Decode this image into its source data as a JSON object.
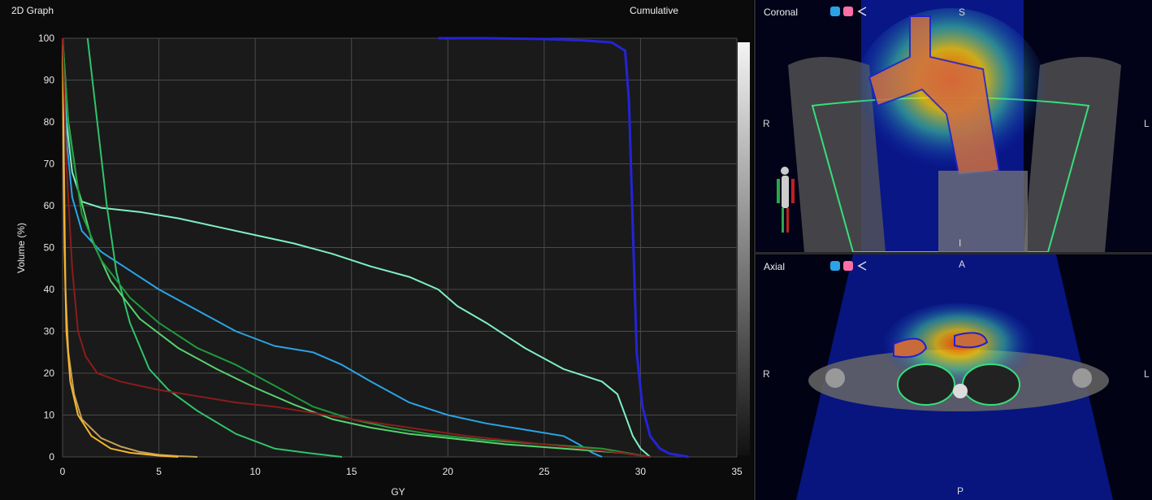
{
  "graph_panel": {
    "title": "2D Graph",
    "mode_label": "Cumulative"
  },
  "coronal_view": {
    "title": "Coronal",
    "orient_right": "R",
    "orient_left": "L",
    "orient_top": "S",
    "orient_bottom": "I"
  },
  "axial_view": {
    "title": "Axial",
    "orient_right": "R",
    "orient_left": "L",
    "orient_top": "A",
    "orient_bottom": "P"
  },
  "icons": {
    "cube_blue": "#2aa4e6",
    "cube_pink": "#ff6ea8",
    "share": "share-icon"
  },
  "chart_data": {
    "type": "line",
    "title": "",
    "xlabel": "GY",
    "ylabel": "Volume (%)",
    "xlim": [
      0,
      35
    ],
    "ylim": [
      0,
      100
    ],
    "x_ticks": [
      0,
      5,
      10,
      15,
      20,
      25,
      30,
      35
    ],
    "y_ticks": [
      0,
      10,
      20,
      30,
      40,
      50,
      60,
      70,
      80,
      90,
      100
    ],
    "grid": true,
    "series": [
      {
        "color": "#2424d6",
        "points": [
          [
            19.5,
            100
          ],
          [
            22,
            100
          ],
          [
            25,
            99.8
          ],
          [
            27,
            99.5
          ],
          [
            28.5,
            99
          ],
          [
            29.2,
            97
          ],
          [
            29.4,
            85
          ],
          [
            29.6,
            55
          ],
          [
            29.8,
            25
          ],
          [
            30.1,
            12
          ],
          [
            30.5,
            5
          ],
          [
            31,
            2
          ],
          [
            31.5,
            0.8
          ],
          [
            32.5,
            0
          ]
        ]
      },
      {
        "color": "#7ff0c2",
        "points": [
          [
            0,
            100
          ],
          [
            0.2,
            80
          ],
          [
            0.5,
            68
          ],
          [
            1,
            61
          ],
          [
            2,
            59.5
          ],
          [
            4,
            58.5
          ],
          [
            6,
            57
          ],
          [
            8,
            55
          ],
          [
            10,
            53
          ],
          [
            12,
            51
          ],
          [
            14,
            48.5
          ],
          [
            16,
            45.5
          ],
          [
            18,
            43
          ],
          [
            19.5,
            40
          ],
          [
            20.5,
            36
          ],
          [
            22,
            32
          ],
          [
            24,
            26
          ],
          [
            26,
            21
          ],
          [
            28,
            18
          ],
          [
            28.8,
            15
          ],
          [
            29.2,
            10
          ],
          [
            29.6,
            5
          ],
          [
            30,
            2
          ],
          [
            30.5,
            0
          ]
        ]
      },
      {
        "color": "#2aa4e6",
        "points": [
          [
            0,
            100
          ],
          [
            0.2,
            76
          ],
          [
            0.5,
            62
          ],
          [
            1,
            54
          ],
          [
            2,
            49
          ],
          [
            3,
            46
          ],
          [
            5,
            40
          ],
          [
            7,
            35
          ],
          [
            9,
            30
          ],
          [
            11,
            26.5
          ],
          [
            13,
            25
          ],
          [
            14.5,
            22
          ],
          [
            16,
            18
          ],
          [
            18,
            13
          ],
          [
            20,
            10
          ],
          [
            22,
            8
          ],
          [
            24,
            6.5
          ],
          [
            26,
            5
          ],
          [
            26.8,
            3
          ],
          [
            27.5,
            1
          ],
          [
            28,
            0
          ]
        ]
      },
      {
        "color": "#2fc46a",
        "points": [
          [
            1.3,
            100
          ],
          [
            1.8,
            80
          ],
          [
            2.3,
            60
          ],
          [
            2.8,
            44
          ],
          [
            3.5,
            32
          ],
          [
            4.5,
            21
          ],
          [
            5.5,
            16
          ],
          [
            7,
            11
          ],
          [
            9,
            5.5
          ],
          [
            11,
            2
          ],
          [
            13,
            0.8
          ],
          [
            14.5,
            0
          ]
        ]
      },
      {
        "color": "#58d26e",
        "points": [
          [
            0,
            100
          ],
          [
            0.3,
            80
          ],
          [
            0.8,
            64
          ],
          [
            1.5,
            52
          ],
          [
            2.5,
            42
          ],
          [
            4,
            33
          ],
          [
            6,
            26
          ],
          [
            8,
            21
          ],
          [
            10,
            16.5
          ],
          [
            12,
            12.5
          ],
          [
            14,
            9
          ],
          [
            16,
            7
          ],
          [
            18,
            5.5
          ],
          [
            20,
            4.5
          ],
          [
            23,
            3
          ],
          [
            26,
            2
          ],
          [
            29,
            1
          ],
          [
            30.5,
            0
          ]
        ]
      },
      {
        "color": "#1f9a3c",
        "points": [
          [
            0,
            100
          ],
          [
            0.3,
            79
          ],
          [
            1,
            58
          ],
          [
            2,
            47
          ],
          [
            3.5,
            38
          ],
          [
            5,
            32
          ],
          [
            7,
            26
          ],
          [
            9,
            22
          ],
          [
            11,
            17
          ],
          [
            13,
            12
          ],
          [
            15,
            9
          ],
          [
            17,
            7
          ],
          [
            19,
            5.5
          ],
          [
            22,
            4
          ],
          [
            25,
            3
          ],
          [
            28,
            2
          ],
          [
            30.5,
            0
          ]
        ]
      },
      {
        "color": "#c4a05a",
        "points": [
          [
            0,
            100
          ],
          [
            0.05,
            80
          ],
          [
            0.1,
            60
          ],
          [
            0.15,
            40
          ],
          [
            0.3,
            25
          ],
          [
            0.6,
            15
          ],
          [
            1,
            9
          ],
          [
            2,
            4.5
          ],
          [
            3,
            2.5
          ],
          [
            4,
            1.2
          ],
          [
            5,
            0.5
          ],
          [
            6,
            0.2
          ],
          [
            7,
            0
          ]
        ]
      },
      {
        "color": "#f7b52c",
        "points": [
          [
            0,
            100
          ],
          [
            0.05,
            70
          ],
          [
            0.1,
            50
          ],
          [
            0.2,
            30
          ],
          [
            0.4,
            18
          ],
          [
            0.8,
            10
          ],
          [
            1.5,
            5
          ],
          [
            2.5,
            2
          ],
          [
            3.5,
            1
          ],
          [
            5,
            0.3
          ],
          [
            6,
            0
          ]
        ]
      },
      {
        "color": "#8b1c1c",
        "points": [
          [
            0,
            100
          ],
          [
            0.2,
            70
          ],
          [
            0.5,
            45
          ],
          [
            0.8,
            30
          ],
          [
            1.2,
            24
          ],
          [
            1.8,
            20
          ],
          [
            3,
            18
          ],
          [
            5,
            16
          ],
          [
            7,
            14.5
          ],
          [
            9,
            13
          ],
          [
            11,
            12
          ],
          [
            13,
            10.5
          ],
          [
            15,
            9
          ],
          [
            18,
            7
          ],
          [
            21,
            5
          ],
          [
            24,
            3.5
          ],
          [
            27,
            2
          ],
          [
            29,
            1
          ],
          [
            30.2,
            0.2
          ],
          [
            30.5,
            0
          ]
        ]
      }
    ]
  }
}
